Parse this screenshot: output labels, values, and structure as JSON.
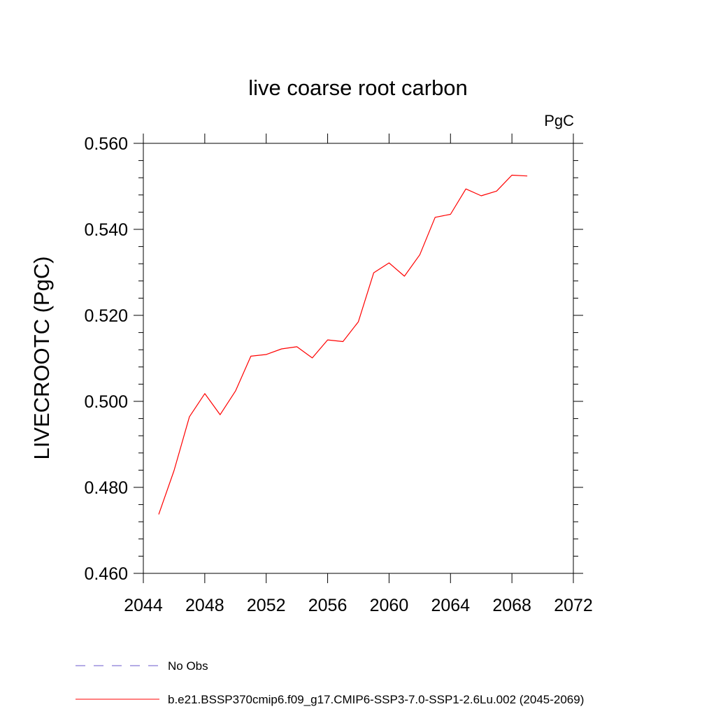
{
  "chart_data": {
    "type": "line",
    "title": "live coarse root carbon",
    "units_label": "PgC",
    "ylabel": "LIVECROOTC  (PgC)",
    "xlabel": "",
    "xlim": [
      2044,
      2072
    ],
    "ylim": [
      0.46,
      0.56
    ],
    "x_ticks": [
      2044,
      2048,
      2052,
      2056,
      2060,
      2064,
      2068,
      2072
    ],
    "x_tick_labels": [
      "2044",
      "2048",
      "2052",
      "2056",
      "2060",
      "2064",
      "2068",
      "2072"
    ],
    "y_ticks": [
      0.46,
      0.48,
      0.5,
      0.52,
      0.54,
      0.56
    ],
    "y_tick_labels": [
      "0.460",
      "0.480",
      "0.500",
      "0.520",
      "0.540",
      "0.560"
    ],
    "grid": false,
    "legend_position": "bottom",
    "series": [
      {
        "name": "b.e21.BSSP370cmip6.f09_g17.CMIP6-SSP3-7.0-SSP1-2.6Lu.002 (2045-2069)",
        "color": "#ff0000",
        "dash": "solid",
        "x": [
          2045,
          2046,
          2047,
          2048,
          2049,
          2050,
          2051,
          2052,
          2053,
          2054,
          2055,
          2056,
          2057,
          2058,
          2059,
          2060,
          2061,
          2062,
          2063,
          2064,
          2065,
          2066,
          2067,
          2068,
          2069
        ],
        "y": [
          0.4737,
          0.4839,
          0.4964,
          0.5018,
          0.4969,
          0.5024,
          0.5105,
          0.5109,
          0.5122,
          0.5127,
          0.5101,
          0.5143,
          0.5139,
          0.5185,
          0.5299,
          0.5322,
          0.5291,
          0.5341,
          0.5428,
          0.5435,
          0.5494,
          0.5478,
          0.5489,
          0.5526,
          0.5524
        ]
      }
    ],
    "legend_entries": [
      {
        "label": "No Obs",
        "color": "#6a5acd",
        "dash": "dashed"
      },
      {
        "label": "b.e21.BSSP370cmip6.f09_g17.CMIP6-SSP3-7.0-SSP1-2.6Lu.002 (2045-2069)",
        "color": "#ff0000",
        "dash": "solid"
      }
    ]
  }
}
